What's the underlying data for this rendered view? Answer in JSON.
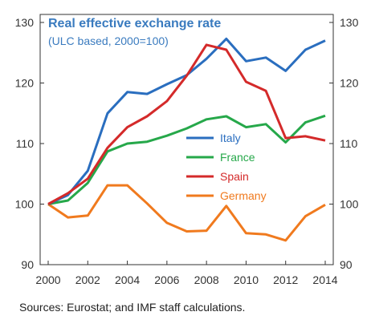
{
  "chart_data": {
    "type": "line",
    "title": "Real effective exchange rate",
    "subtitle": "(ULC based, 2000=100)",
    "xlabel": "",
    "ylabel": "",
    "x": [
      2000,
      2001,
      2002,
      2003,
      2004,
      2005,
      2006,
      2007,
      2008,
      2009,
      2010,
      2011,
      2012,
      2013,
      2014
    ],
    "x_ticks": [
      2000,
      2002,
      2004,
      2006,
      2008,
      2010,
      2012,
      2014
    ],
    "y_ticks": [
      90,
      100,
      110,
      120,
      130
    ],
    "xlim": [
      2000,
      2014
    ],
    "ylim": [
      90,
      130
    ],
    "grid": false,
    "legend_position": "right-center",
    "series": [
      {
        "name": "Italy",
        "color": "#2a6ebf",
        "values": [
          100,
          101.5,
          105.5,
          115,
          118.5,
          118.2,
          119.8,
          121.3,
          124,
          127.3,
          123.6,
          124.2,
          122,
          125.5,
          127
        ]
      },
      {
        "name": "France",
        "color": "#26a84a",
        "values": [
          100,
          100.6,
          103.5,
          108.7,
          110,
          110.3,
          111.3,
          112.5,
          114,
          114.5,
          112.7,
          113.2,
          110.2,
          113.5,
          114.6
        ]
      },
      {
        "name": "Spain",
        "color": "#d42a2a",
        "values": [
          100,
          101.8,
          104.2,
          109.3,
          112.7,
          114.5,
          117,
          121.2,
          126.3,
          125.5,
          120.2,
          118.7,
          110.9,
          111.2,
          110.5
        ]
      },
      {
        "name": "Germany",
        "color": "#f07a1e",
        "values": [
          100,
          97.8,
          98.1,
          103.1,
          103.1,
          100.1,
          96.9,
          95.5,
          95.6,
          99.7,
          95.2,
          95,
          94,
          98,
          99.9
        ]
      }
    ]
  },
  "footer": {
    "source": "Sources: Eurostat; and IMF staff calculations."
  }
}
